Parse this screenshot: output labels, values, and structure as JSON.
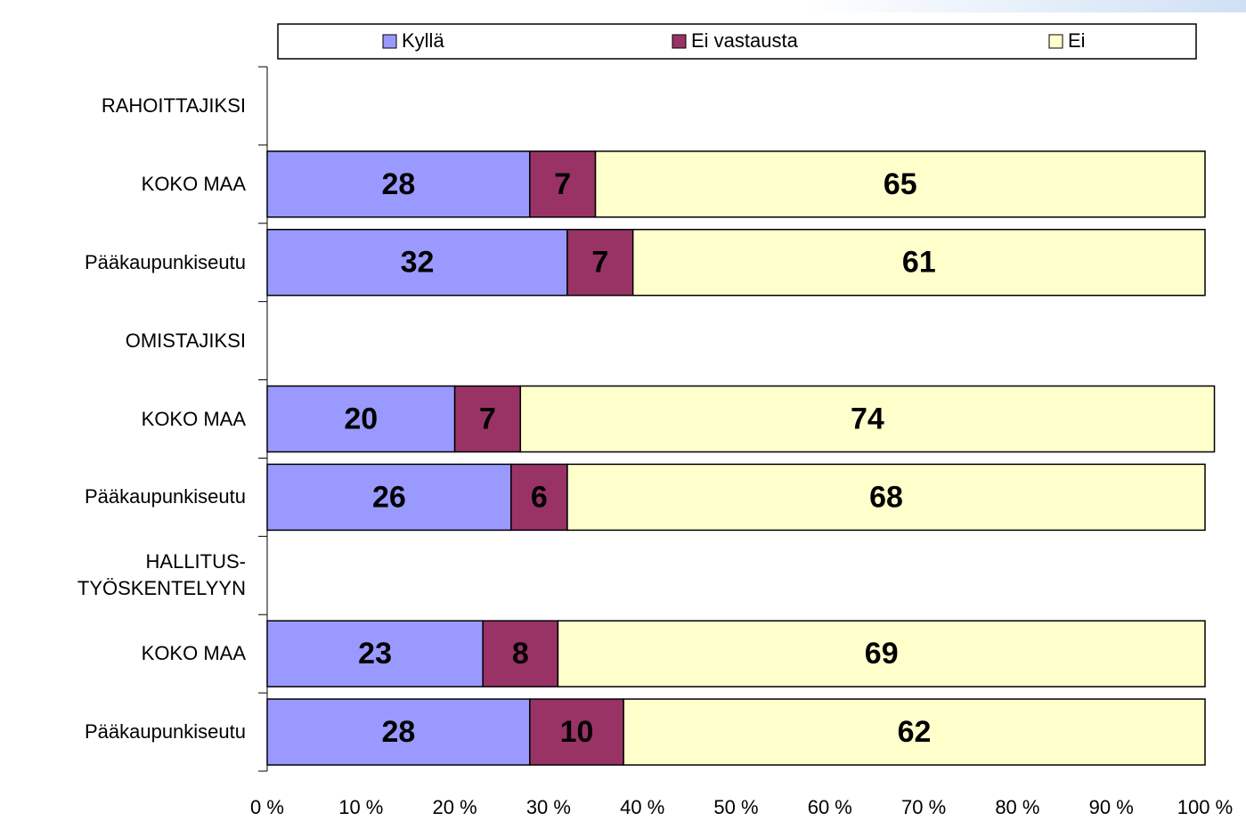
{
  "chart_data": {
    "type": "stacked-barh",
    "categories": [
      "RAHOITTAJIKSI",
      "KOKO MAA",
      "Pääkaupunkiseutu",
      "OMISTAJIKSI",
      "KOKO MAA",
      "Pääkaupunkiseutu",
      "HALLITUS-\nTYÖSKENTELYYN",
      "KOKO MAA",
      "Pääkaupunkiseutu"
    ],
    "series": [
      {
        "name": "Kyllä",
        "color": "#9999ff",
        "values": [
          null,
          28,
          32,
          null,
          20,
          26,
          null,
          23,
          28
        ]
      },
      {
        "name": "Ei vastausta",
        "color": "#993366",
        "values": [
          null,
          7,
          7,
          null,
          7,
          6,
          null,
          8,
          10
        ]
      },
      {
        "name": "Ei",
        "color": "#ffffcc",
        "values": [
          null,
          65,
          61,
          null,
          74,
          68,
          null,
          69,
          62
        ]
      }
    ],
    "xlim": [
      0,
      100
    ],
    "xticks": [
      {
        "value": 0,
        "label": "0 %"
      },
      {
        "value": 10,
        "label": "10 %"
      },
      {
        "value": 20,
        "label": "20 %"
      },
      {
        "value": 30,
        "label": "30 %"
      },
      {
        "value": 40,
        "label": "40 %"
      },
      {
        "value": 50,
        "label": "50 %"
      },
      {
        "value": 60,
        "label": "60 %"
      },
      {
        "value": 70,
        "label": "70 %"
      },
      {
        "value": 80,
        "label": "80 %"
      },
      {
        "value": 90,
        "label": "90 %"
      },
      {
        "value": 100,
        "label": "100 %"
      }
    ],
    "legend": "top"
  }
}
